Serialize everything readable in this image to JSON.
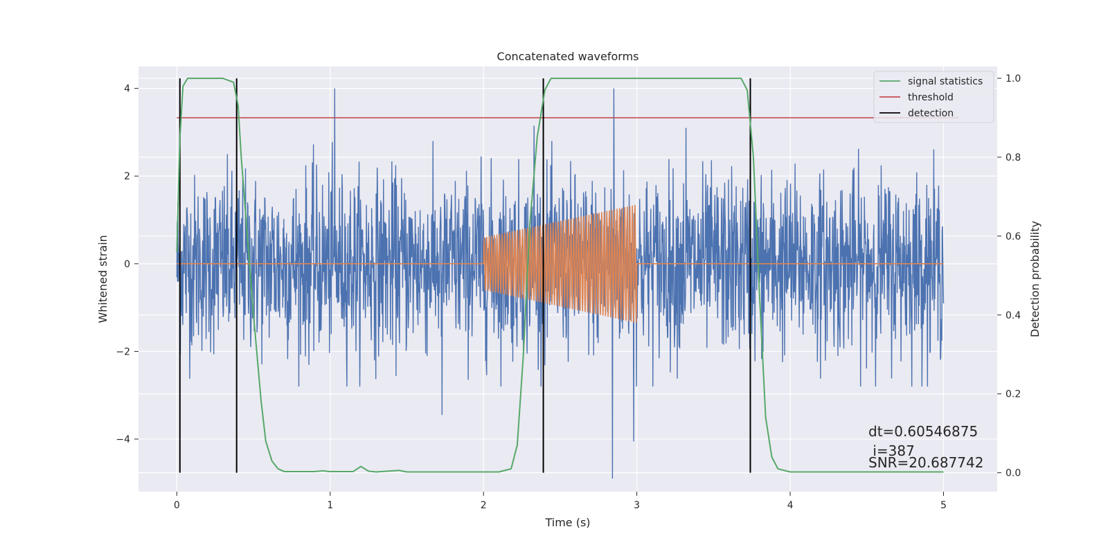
{
  "chart_data": {
    "type": "line",
    "title": "Concatenated waveforms",
    "xlabel": "Time (s)",
    "ylabel": "Whitened strain",
    "y2label": "Detection probability",
    "xlim": [
      -0.25,
      5.35
    ],
    "ylim": [
      -5.2,
      4.5
    ],
    "y2lim": [
      -0.048,
      1.03
    ],
    "xticks": [
      0,
      1,
      2,
      3,
      4,
      5
    ],
    "yticks": [
      -4,
      -2,
      0,
      2,
      4
    ],
    "y2ticks": [
      0.0,
      0.2,
      0.4,
      0.6,
      0.8,
      1.0
    ],
    "xtick_labels": [
      "0",
      "1",
      "2",
      "3",
      "4",
      "5"
    ],
    "ytick_labels": [
      "−4",
      "−2",
      "0",
      "2",
      "4"
    ],
    "y2tick_labels": [
      "0.0",
      "0.2",
      "0.4",
      "0.6",
      "0.8",
      "1.0"
    ],
    "grid": true,
    "legend_position": "top-right",
    "legend": [
      "signal statistics",
      "threshold",
      "detection"
    ],
    "colors": {
      "background": "#eaeaf2",
      "grid": "#ffffff",
      "noise": "#4c72b0",
      "injection": "#dd8452",
      "signal_statistics": "#55a868",
      "threshold": "#c44e52",
      "detection": "#000000"
    },
    "noise": {
      "x_range": [
        0,
        5
      ],
      "amplitude_sigma": 1.0,
      "typical_extent": [
        -2.8,
        2.8
      ],
      "spikes": [
        {
          "x": 1.03,
          "y": 4.0
        },
        {
          "x": 2.85,
          "y": 4.0
        },
        {
          "x": 2.84,
          "y": -4.9
        },
        {
          "x": 2.98,
          "y": -4.05
        },
        {
          "x": 1.73,
          "y": -3.45
        },
        {
          "x": 2.33,
          "y": 3.15
        },
        {
          "x": 3.32,
          "y": 3.1
        }
      ]
    },
    "injection": {
      "x_range": [
        2.0,
        3.0
      ],
      "amplitude_start": 0.6,
      "amplitude_end": 1.35,
      "cycles": 60
    },
    "signal_statistics": {
      "x": [
        0.0,
        0.02,
        0.04,
        0.07,
        0.1,
        0.3,
        0.37,
        0.4,
        0.42,
        0.46,
        0.5,
        0.55,
        0.58,
        0.62,
        0.66,
        0.7,
        0.9,
        0.95,
        1.0,
        1.15,
        1.2,
        1.25,
        1.3,
        1.45,
        1.5,
        2.1,
        2.18,
        2.22,
        2.26,
        2.3,
        2.35,
        2.4,
        2.44,
        2.48,
        2.55,
        3.68,
        3.72,
        3.76,
        3.8,
        3.84,
        3.88,
        3.92,
        4.0,
        5.0
      ],
      "y": [
        0.56,
        0.85,
        0.98,
        1.0,
        1.0,
        1.0,
        0.99,
        0.93,
        0.8,
        0.6,
        0.4,
        0.18,
        0.08,
        0.03,
        0.01,
        0.003,
        0.003,
        0.005,
        0.003,
        0.003,
        0.016,
        0.004,
        0.002,
        0.006,
        0.002,
        0.002,
        0.01,
        0.07,
        0.3,
        0.62,
        0.85,
        0.97,
        1.0,
        1.0,
        1.0,
        1.0,
        0.97,
        0.8,
        0.45,
        0.14,
        0.04,
        0.01,
        0.002,
        0.002
      ]
    },
    "threshold": {
      "y": 0.9,
      "x_range": [
        0,
        5.1
      ]
    },
    "detections": [
      0.02,
      0.39,
      2.39,
      3.74
    ],
    "annotations": [
      "dt=0.60546875",
      " i=387",
      "SNR=20.687742"
    ]
  }
}
